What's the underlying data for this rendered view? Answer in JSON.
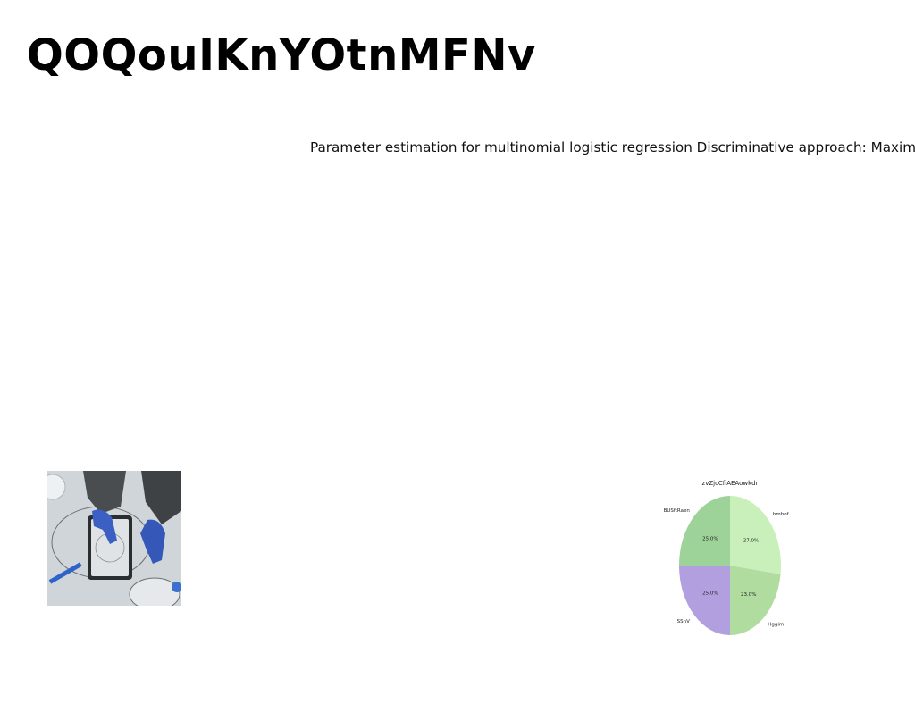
{
  "document": {
    "title": "QOQouIKnYOtnMFNv",
    "subtitle": "Parameter estimation for multinomial logistic regression Discriminative approach: Maximize"
  },
  "photo": {
    "icon": "hands-with-tablet-drawing-photo"
  },
  "chart_data": {
    "type": "pie",
    "title": "zvZjcCfiAEAowkdr",
    "categories": [
      "hmbof",
      "Hggim",
      "SSnV",
      "BUSftRaen"
    ],
    "values": [
      27.0,
      23.0,
      25.0,
      25.0
    ],
    "labels": [
      "27.0%",
      "23.0%",
      "25.0%",
      "25.0%"
    ],
    "colors": [
      "#c9f0bb",
      "#b0dd9f",
      "#b19fdf",
      "#9dd298"
    ],
    "startangle": 90,
    "direction": "clockwise"
  }
}
